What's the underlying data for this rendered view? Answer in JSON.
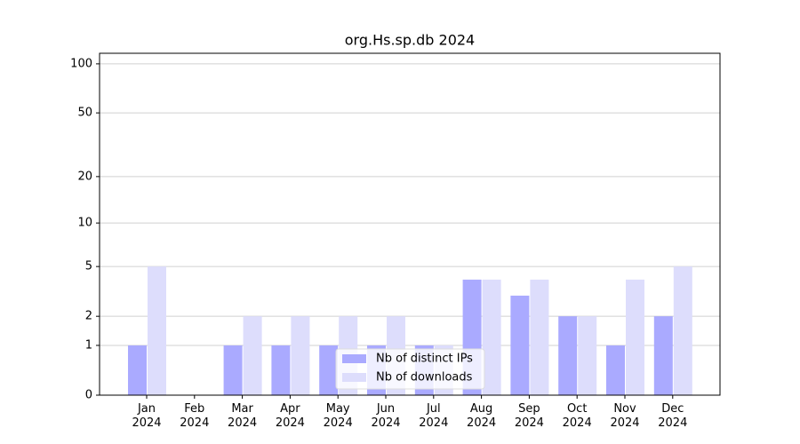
{
  "chart_data": {
    "type": "bar",
    "title": "org.Hs.sp.db 2024",
    "categories": [
      "Jan\n2024",
      "Feb\n2024",
      "Mar\n2024",
      "Apr\n2024",
      "May\n2024",
      "Jun\n2024",
      "Jul\n2024",
      "Aug\n2024",
      "Sep\n2024",
      "Oct\n2024",
      "Nov\n2024",
      "Dec\n2024"
    ],
    "series": [
      {
        "name": "Nb of distinct IPs",
        "color": "#aaaaff",
        "values": [
          1,
          0,
          1,
          1,
          1,
          1,
          1,
          4,
          3,
          2,
          1,
          2
        ]
      },
      {
        "name": "Nb of downloads",
        "color": "#ddddfc",
        "values": [
          5,
          0,
          2,
          2,
          2,
          2,
          1,
          4,
          4,
          2,
          4,
          5
        ]
      }
    ],
    "yscale": "log1p",
    "ylim": [
      0,
      116
    ],
    "yticks": [
      0,
      1,
      2,
      5,
      10,
      20,
      50,
      100
    ],
    "grid": true,
    "legend": "lower center"
  }
}
